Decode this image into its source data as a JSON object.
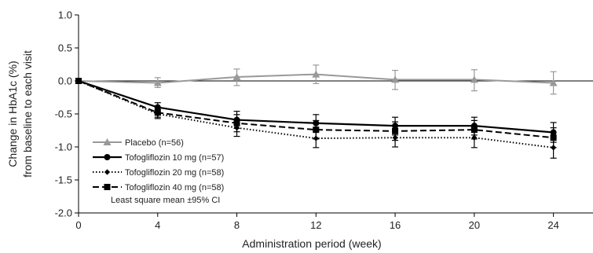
{
  "chart_data": {
    "type": "line",
    "xlabel": "Administration period (week)",
    "ylabel_line1": "Change in HbA1c (%)",
    "ylabel_line2": "from baseline to each visit",
    "xlim": [
      0,
      26
    ],
    "ylim": [
      -2.0,
      1.0
    ],
    "x_ticks": [
      0,
      4,
      8,
      12,
      16,
      20,
      24
    ],
    "y_ticks": [
      1.0,
      0.5,
      0.0,
      -0.5,
      -1.0,
      -1.5,
      -2.0
    ],
    "y_tick_labels": [
      "1.0",
      "0.5",
      "0.0",
      "-0.5",
      "-1.0",
      "-1.5",
      "-2.0"
    ],
    "x": [
      0,
      4,
      8,
      12,
      16,
      20,
      24
    ],
    "reference_line_y": 0,
    "series": [
      {
        "name": "Placebo (n=56)",
        "color": "#999999",
        "line": "solid",
        "marker": "triangle",
        "values": [
          0.0,
          -0.03,
          0.06,
          0.1,
          0.02,
          0.02,
          -0.03
        ],
        "ci_low": [
          0.0,
          -0.1,
          -0.07,
          -0.04,
          -0.13,
          -0.15,
          -0.2
        ],
        "ci_high": [
          0.0,
          0.05,
          0.18,
          0.24,
          0.16,
          0.17,
          0.14
        ]
      },
      {
        "name": "Tofogliflozin 10 mg (n=57)",
        "color": "#000000",
        "line": "solid",
        "marker": "circle",
        "values": [
          0.0,
          -0.4,
          -0.59,
          -0.64,
          -0.68,
          -0.68,
          -0.78
        ],
        "ci_low": [
          0.0,
          -0.47,
          -0.72,
          -0.77,
          -0.82,
          -0.82,
          -0.93
        ],
        "ci_high": [
          0.0,
          -0.33,
          -0.46,
          -0.51,
          -0.55,
          -0.55,
          -0.63
        ]
      },
      {
        "name": "Tofogliflozin 20 mg (n=58)",
        "color": "#000000",
        "line": "dotted",
        "marker": "diamond",
        "values": [
          0.0,
          -0.5,
          -0.71,
          -0.87,
          -0.86,
          -0.86,
          -1.01
        ],
        "ci_low": [
          0.0,
          -0.57,
          -0.84,
          -1.01,
          -1.0,
          -1.01,
          -1.17
        ],
        "ci_high": [
          0.0,
          -0.43,
          -0.58,
          -0.73,
          -0.72,
          -0.71,
          -0.85
        ]
      },
      {
        "name": "Tofogliflozin 40 mg (n=58)",
        "color": "#000000",
        "line": "dashed",
        "marker": "square",
        "values": [
          0.0,
          -0.48,
          -0.64,
          -0.74,
          -0.76,
          -0.74,
          -0.86
        ],
        "ci_low": [
          0.0,
          -0.55,
          -0.77,
          -0.88,
          -0.9,
          -0.88,
          -1.01
        ],
        "ci_high": [
          0.0,
          -0.41,
          -0.51,
          -0.6,
          -0.62,
          -0.6,
          -0.71
        ]
      }
    ],
    "legend_position": "bottom-left",
    "legend_note": "Least square mean ±95% CI"
  }
}
